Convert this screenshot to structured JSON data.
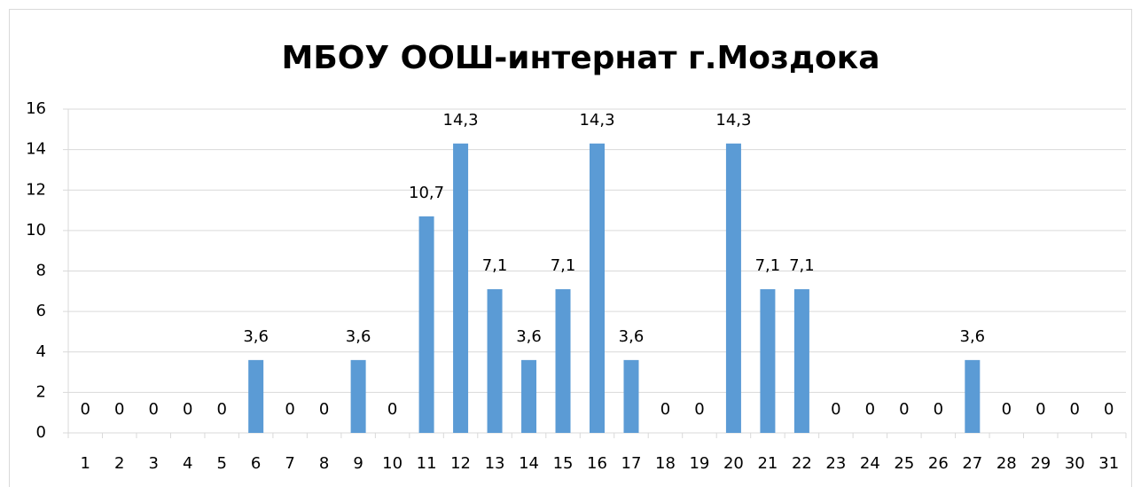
{
  "chart_data": {
    "type": "bar",
    "title": "МБОУ ООШ-интернат г.Моздока",
    "categories": [
      "1",
      "2",
      "3",
      "4",
      "5",
      "6",
      "7",
      "8",
      "9",
      "10",
      "11",
      "12",
      "13",
      "14",
      "15",
      "16",
      "17",
      "18",
      "19",
      "20",
      "21",
      "22",
      "23",
      "24",
      "25",
      "26",
      "27",
      "28",
      "29",
      "30",
      "31"
    ],
    "values": [
      0,
      0,
      0,
      0,
      0,
      3.6,
      0,
      0,
      3.6,
      0,
      10.7,
      14.3,
      7.1,
      3.6,
      7.1,
      14.3,
      3.6,
      0,
      0,
      14.3,
      7.1,
      7.1,
      0,
      0,
      0,
      0,
      3.6,
      0,
      0,
      0,
      0
    ],
    "value_labels": [
      "0",
      "0",
      "0",
      "0",
      "0",
      "3,6",
      "0",
      "0",
      "3,6",
      "0",
      "10,7",
      "14,3",
      "7,1",
      "3,6",
      "7,1",
      "14,3",
      "3,6",
      "0",
      "0",
      "14,3",
      "7,1",
      "7,1",
      "0",
      "0",
      "0",
      "0",
      "3,6",
      "0",
      "0",
      "0",
      "0"
    ],
    "color": "#5b9bd5",
    "ylim": [
      0,
      16
    ],
    "yticks": [
      0,
      2,
      4,
      6,
      8,
      10,
      12,
      14,
      16
    ],
    "grid": true
  }
}
